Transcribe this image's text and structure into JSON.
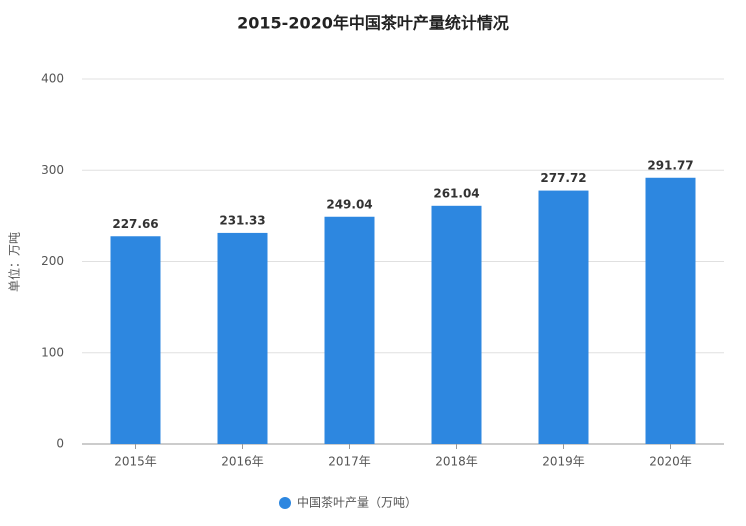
{
  "chart_data": {
    "type": "bar",
    "title": "2015-2020年中国茶叶产量统计情况",
    "y_label": "单位：万吨",
    "categories": [
      "2015年",
      "2016年",
      "2017年",
      "2018年",
      "2019年",
      "2020年"
    ],
    "series": [
      {
        "name": "中国茶叶产量（万吨）",
        "color": "#2d87e0",
        "values": [
          227.66,
          231.33,
          249.04,
          261.04,
          277.72,
          291.77
        ]
      }
    ],
    "ylim": [
      0,
      400
    ],
    "yticks": [
      0,
      100,
      200,
      300,
      400
    ],
    "grid": true
  }
}
